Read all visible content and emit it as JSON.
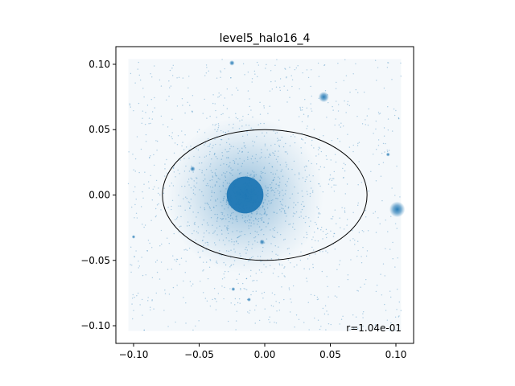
{
  "chart_data": {
    "type": "scatter",
    "title": "level5_halo16_4",
    "xlabel": "",
    "ylabel": "",
    "xlim": [
      -0.1135,
      0.1135
    ],
    "ylim": [
      -0.1135,
      0.1135
    ],
    "grid": false,
    "xticks": [
      -0.1,
      -0.05,
      0.0,
      0.05,
      0.1
    ],
    "yticks": [
      -0.1,
      -0.05,
      0.0,
      0.05,
      0.1
    ],
    "xtick_labels": [
      "−0.10",
      "−0.05",
      "0.00",
      "0.05",
      "0.10"
    ],
    "ytick_labels": [
      "−0.10",
      "−0.05",
      "0.00",
      "0.05",
      "0.10"
    ],
    "particle_color": "#1f77b4",
    "ellipse_color": "#000000",
    "field_extent": [
      -0.104,
      0.104
    ],
    "main_halo": {
      "x": -0.015,
      "y": 0.0,
      "core_radius": 0.014,
      "halo_radius": 0.06
    },
    "ellipse": {
      "cx": 0.0,
      "cy": 0.0,
      "a": 0.078,
      "b": 0.05
    },
    "subhalos": [
      {
        "x": 0.045,
        "y": 0.075,
        "radius": 0.004
      },
      {
        "x": 0.101,
        "y": -0.011,
        "radius": 0.006
      },
      {
        "x": -0.055,
        "y": 0.02,
        "radius": 0.002
      },
      {
        "x": -0.025,
        "y": 0.101,
        "radius": 0.002
      },
      {
        "x": -0.002,
        "y": -0.036,
        "radius": 0.002
      },
      {
        "x": -0.024,
        "y": -0.072,
        "radius": 0.0015
      },
      {
        "x": -0.012,
        "y": -0.08,
        "radius": 0.0015
      },
      {
        "x": 0.094,
        "y": 0.031,
        "radius": 0.0015
      },
      {
        "x": -0.1,
        "y": -0.032,
        "radius": 0.001
      }
    ],
    "annotation": "r=1.04e-01"
  }
}
